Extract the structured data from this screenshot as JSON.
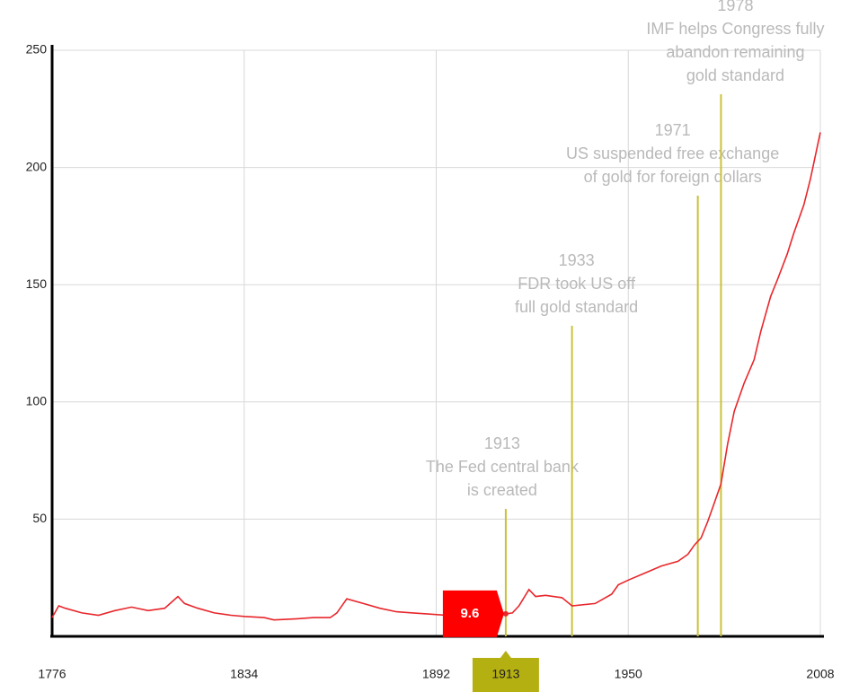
{
  "chart_data": {
    "type": "line",
    "x": [
      1776,
      1778,
      1780,
      1785,
      1790,
      1795,
      1800,
      1805,
      1810,
      1814,
      1816,
      1820,
      1825,
      1830,
      1834,
      1840,
      1843,
      1850,
      1855,
      1860,
      1862,
      1865,
      1870,
      1875,
      1880,
      1885,
      1890,
      1900,
      1905,
      1910,
      1913,
      1915,
      1917,
      1920,
      1922,
      1925,
      1930,
      1933,
      1940,
      1945,
      1947,
      1950,
      1955,
      1960,
      1965,
      1968,
      1970,
      1972,
      1974,
      1976,
      1978,
      1980,
      1982,
      1985,
      1988,
      1990,
      1993,
      1995,
      1998,
      2000,
      2003,
      2005,
      2008
    ],
    "series": [
      {
        "color": "#e8262b",
        "values": [
          8,
          13,
          12,
          10,
          9,
          11,
          12.5,
          11,
          12,
          17,
          14,
          12,
          10,
          9,
          8.5,
          8,
          7,
          7.5,
          8,
          8,
          10,
          16,
          14,
          12,
          10.5,
          10,
          9.5,
          8.5,
          8.5,
          9.5,
          9.6,
          10,
          13,
          20,
          17,
          17.5,
          16.5,
          13,
          14,
          18,
          22,
          24,
          27,
          30,
          32,
          35,
          39,
          42,
          49,
          57,
          65,
          82,
          96,
          108,
          118,
          130,
          145,
          152,
          163,
          172,
          184,
          195,
          215
        ]
      }
    ],
    "xlim": [
      1776,
      2008
    ],
    "xticks": [
      1776,
      1834,
      1892,
      1950,
      2008
    ],
    "ylim": [
      0,
      250
    ],
    "yticks": [
      50,
      100,
      150,
      200,
      250
    ],
    "grid": true,
    "annotations": [
      {
        "x": 1913,
        "label": [
          "1913",
          "The Fed central bank",
          "is created"
        ]
      },
      {
        "x": 1933,
        "label": [
          "1933",
          "FDR took US off",
          "full gold standard"
        ]
      },
      {
        "x": 1971,
        "label": [
          "1971",
          "US suspended free exchange",
          "of gold for foreign dollars"
        ]
      },
      {
        "x": 1978,
        "label": [
          "1978",
          "IMF helps Congress fully",
          "abandon remaining",
          "gold standard"
        ]
      }
    ],
    "hover": {
      "x": 1913,
      "value": 9.6
    }
  }
}
